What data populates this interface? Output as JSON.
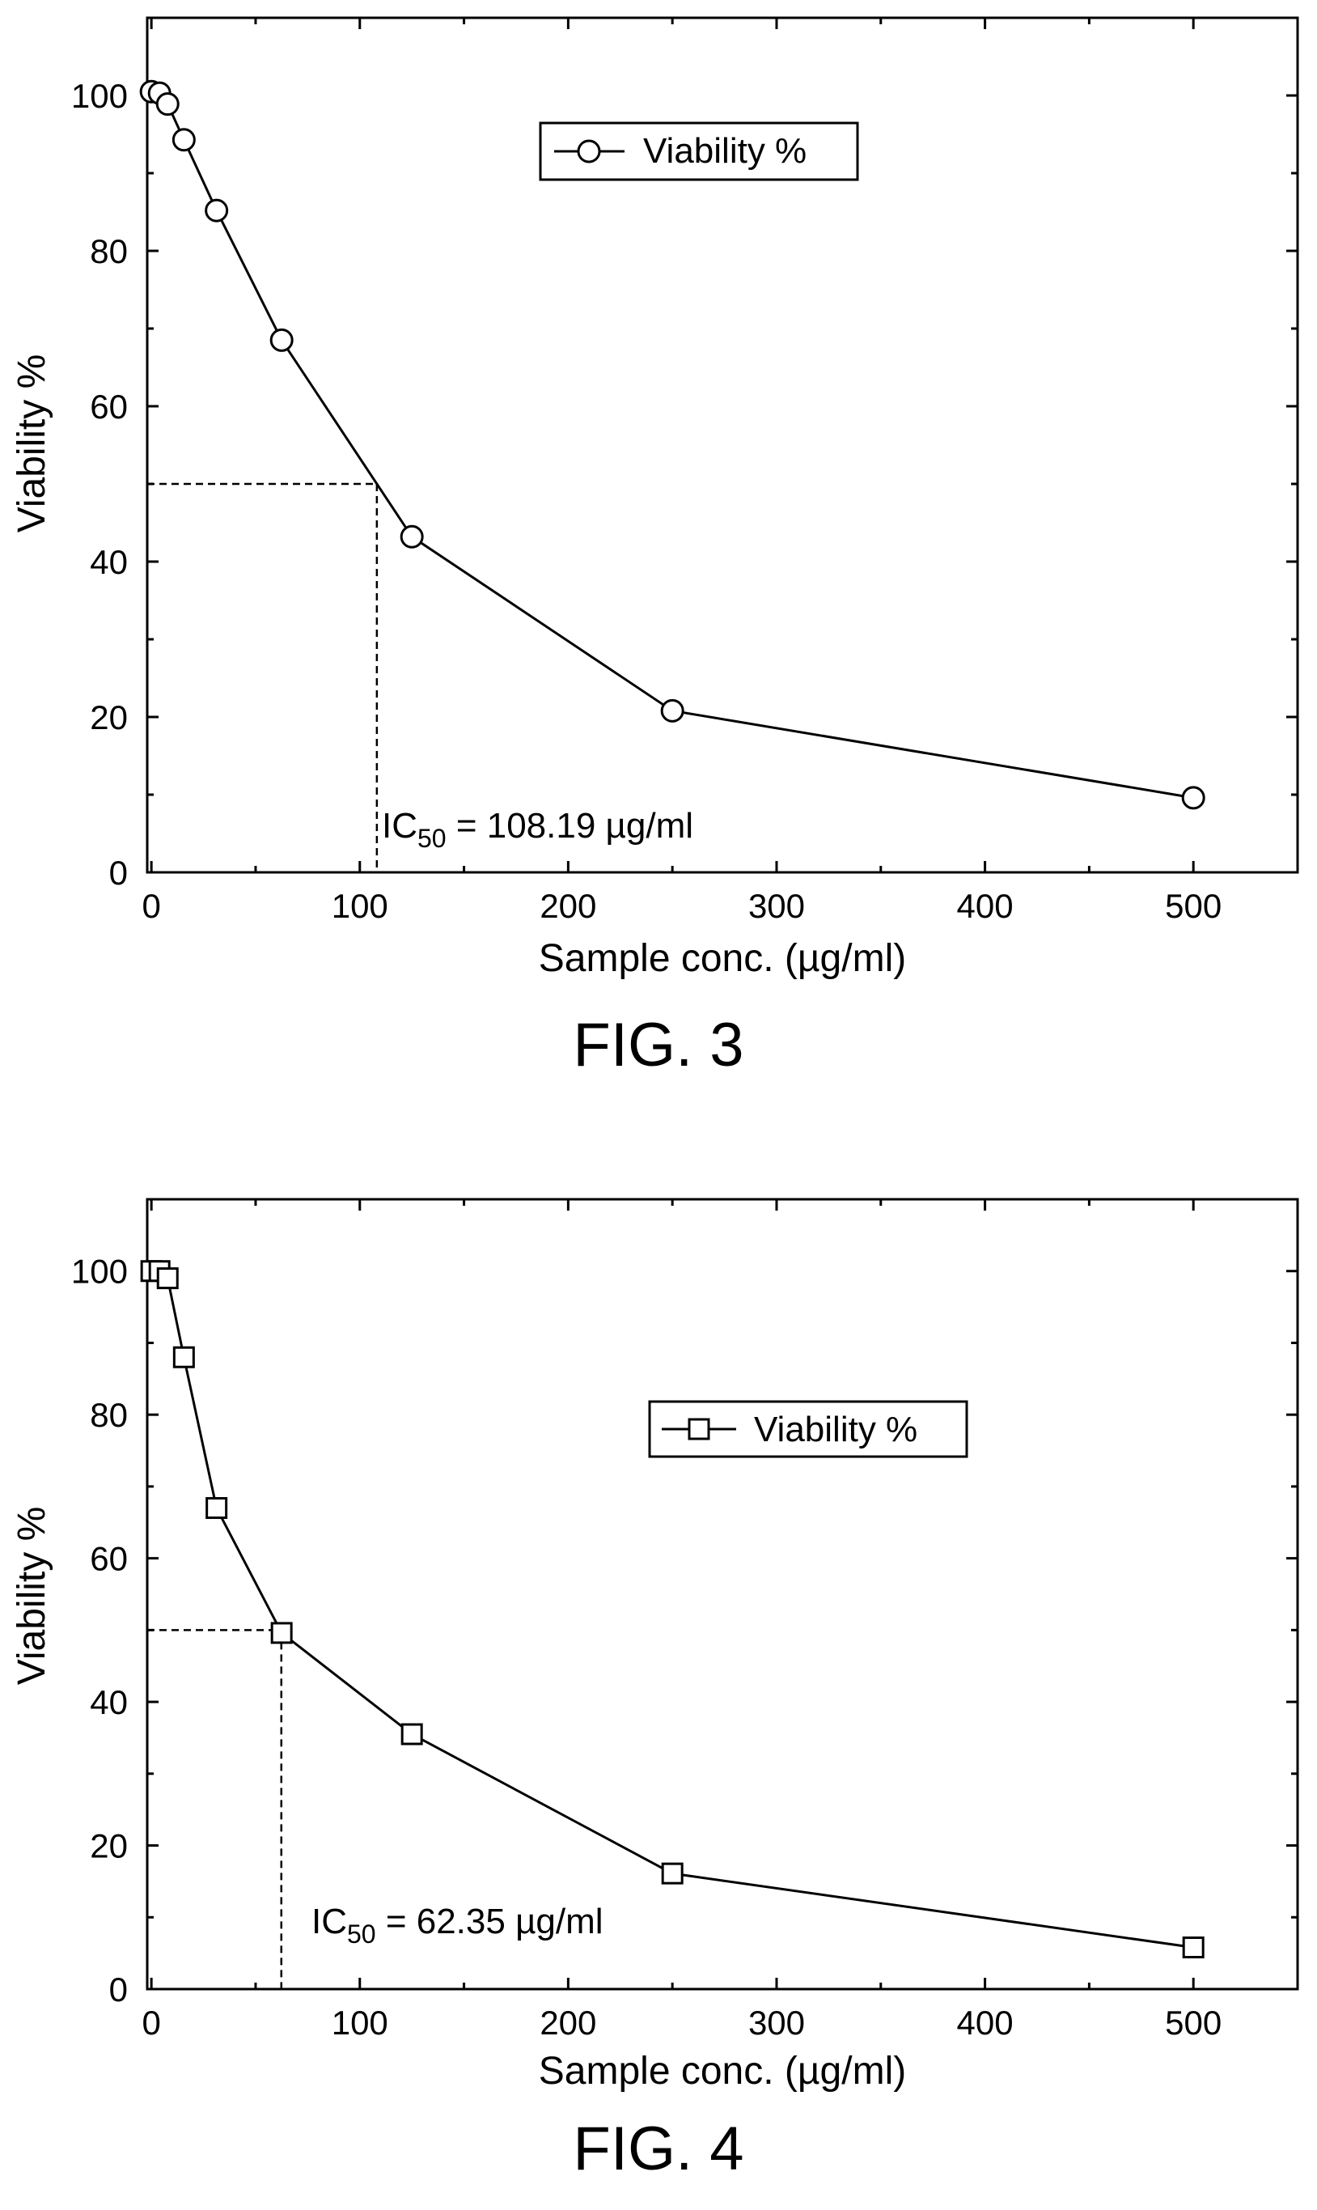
{
  "chart_data": [
    {
      "type": "line",
      "marker": "circle",
      "x": [
        0,
        3.9,
        7.8,
        15.6,
        31.25,
        62.5,
        125,
        250,
        500
      ],
      "series": [
        {
          "name": "Viability %",
          "values": [
            100.5,
            100.3,
            98.9,
            94.3,
            85.2,
            68.5,
            43.2,
            20.8,
            9.6
          ]
        }
      ],
      "xlabel": "Sample conc. (µg/ml)",
      "ylabel": "Viability %",
      "xlim": [
        -2,
        550
      ],
      "ylim": [
        0,
        110
      ],
      "xticks": [
        0,
        100,
        200,
        300,
        400,
        500
      ],
      "yticks": [
        0,
        20,
        40,
        60,
        80,
        100
      ],
      "grid": false,
      "legend": "top-right",
      "ic50": {
        "x": 108.19,
        "y": 50
      },
      "annotation": {
        "prefix": "IC",
        "sub": "50",
        "suffix": " = 108.19 µg/ml"
      },
      "caption": "FIG. 3"
    },
    {
      "type": "line",
      "marker": "square",
      "x": [
        0,
        3.9,
        7.8,
        15.6,
        31.25,
        62.5,
        125,
        250,
        500
      ],
      "series": [
        {
          "name": "Viability %",
          "values": [
            100,
            100,
            99,
            88,
            67,
            49.6,
            35.5,
            16.1,
            5.8
          ]
        }
      ],
      "xlabel": "Sample conc. (µg/ml)",
      "ylabel": "Viability %",
      "xlim": [
        -2,
        550
      ],
      "ylim": [
        0,
        110
      ],
      "xticks": [
        0,
        100,
        200,
        300,
        400,
        500
      ],
      "yticks": [
        0,
        20,
        40,
        60,
        80,
        100
      ],
      "grid": false,
      "legend": "top-right",
      "ic50": {
        "x": 62.35,
        "y": 50
      },
      "annotation": {
        "prefix": "IC",
        "sub": "50",
        "suffix": " = 62.35 µg/ml"
      },
      "caption": "FIG. 4"
    }
  ]
}
